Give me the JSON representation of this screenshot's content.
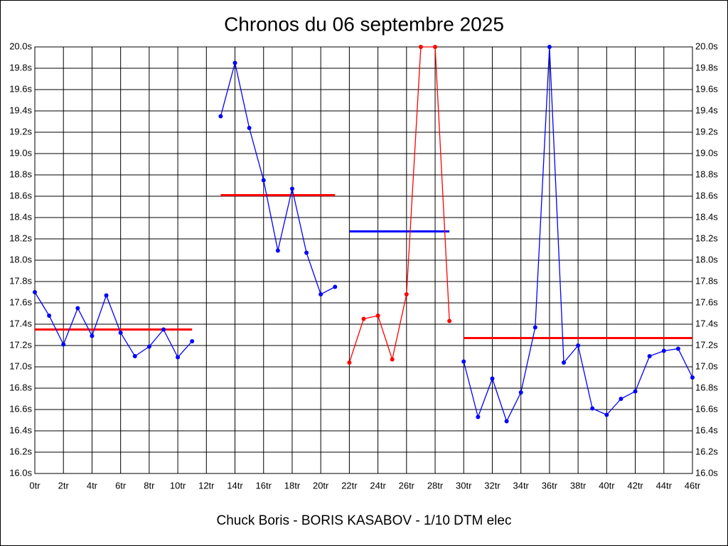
{
  "chart_data": {
    "type": "line",
    "title": "Chronos du 06 septembre 2025",
    "subtitle": "Chuck Boris - BORIS KASABOV - 1/10 DTM elec",
    "x": [
      0,
      1,
      2,
      3,
      4,
      5,
      6,
      7,
      8,
      9,
      10,
      11,
      12,
      13,
      14,
      15,
      16,
      17,
      18,
      19,
      20,
      21,
      22,
      23,
      24,
      25,
      26,
      27,
      28,
      29,
      30,
      31,
      32,
      33,
      34,
      35,
      36,
      37,
      38,
      39,
      40,
      41,
      42,
      43,
      44,
      45,
      46
    ],
    "series": [
      {
        "color": "#0000ff",
        "values": [
          17.7,
          17.48,
          17.21,
          17.55,
          17.29,
          17.67,
          17.32,
          17.1,
          17.19,
          17.35,
          17.09,
          17.24,
          null,
          19.35,
          19.85,
          19.24,
          18.75,
          18.09,
          18.67,
          18.07,
          17.68,
          17.75,
          null,
          null,
          null,
          null,
          null,
          null,
          null,
          null,
          17.05,
          16.53,
          16.89,
          16.49,
          16.76,
          17.37,
          20.0,
          17.04,
          17.2,
          16.61,
          16.55,
          16.7,
          16.77,
          17.1,
          17.15,
          17.17,
          16.9
        ]
      },
      {
        "color": "#ff0000",
        "values": [
          null,
          null,
          null,
          null,
          null,
          null,
          null,
          null,
          null,
          null,
          null,
          null,
          null,
          null,
          null,
          null,
          null,
          null,
          null,
          null,
          null,
          null,
          17.04,
          17.45,
          17.48,
          17.07,
          17.68,
          20.0,
          20.0,
          17.43,
          null,
          null,
          null,
          null,
          null,
          null,
          null,
          null,
          null,
          null,
          null,
          null,
          null,
          null,
          null,
          null,
          null
        ]
      }
    ],
    "mean_lines": [
      {
        "value": 17.35,
        "x": [
          0,
          11
        ],
        "color": "#ff0000"
      },
      {
        "value": 18.61,
        "x": [
          13,
          21
        ],
        "color": "#ff0000"
      },
      {
        "value": 18.27,
        "x": [
          22,
          29
        ],
        "color": "#0000ff"
      },
      {
        "value": 17.27,
        "x": [
          30,
          46
        ],
        "color": "#ff0000"
      }
    ],
    "xlim": [
      0,
      46
    ],
    "ylim": [
      16.0,
      20.0
    ],
    "xticks": [
      {
        "value": 0,
        "label": "0tr"
      },
      {
        "value": 2,
        "label": "2tr"
      },
      {
        "value": 4,
        "label": "4tr"
      },
      {
        "value": 6,
        "label": "6tr"
      },
      {
        "value": 8,
        "label": "8tr"
      },
      {
        "value": 10,
        "label": "10tr"
      },
      {
        "value": 12,
        "label": "12tr"
      },
      {
        "value": 14,
        "label": "14tr"
      },
      {
        "value": 16,
        "label": "16tr"
      },
      {
        "value": 18,
        "label": "18tr"
      },
      {
        "value": 20,
        "label": "20tr"
      },
      {
        "value": 22,
        "label": "22tr"
      },
      {
        "value": 24,
        "label": "24tr"
      },
      {
        "value": 26,
        "label": "26tr"
      },
      {
        "value": 28,
        "label": "28tr"
      },
      {
        "value": 30,
        "label": "30tr"
      },
      {
        "value": 32,
        "label": "32tr"
      },
      {
        "value": 34,
        "label": "34tr"
      },
      {
        "value": 36,
        "label": "36tr"
      },
      {
        "value": 38,
        "label": "38tr"
      },
      {
        "value": 40,
        "label": "40tr"
      },
      {
        "value": 42,
        "label": "42tr"
      },
      {
        "value": 44,
        "label": "44tr"
      },
      {
        "value": 46,
        "label": "46tr"
      }
    ],
    "yticks": [
      {
        "value": 16.0,
        "label": "16.0s"
      },
      {
        "value": 16.2,
        "label": "16.2s"
      },
      {
        "value": 16.4,
        "label": "16.4s"
      },
      {
        "value": 16.6,
        "label": "16.6s"
      },
      {
        "value": 16.8,
        "label": "16.8s"
      },
      {
        "value": 17.0,
        "label": "17.0s"
      },
      {
        "value": 17.2,
        "label": "17.2s"
      },
      {
        "value": 17.4,
        "label": "17.4s"
      },
      {
        "value": 17.6,
        "label": "17.6s"
      },
      {
        "value": 17.8,
        "label": "17.8s"
      },
      {
        "value": 18.0,
        "label": "18.0s"
      },
      {
        "value": 18.2,
        "label": "18.2s"
      },
      {
        "value": 18.4,
        "label": "18.4s"
      },
      {
        "value": 18.6,
        "label": "18.6s"
      },
      {
        "value": 18.8,
        "label": "18.8s"
      },
      {
        "value": 19.0,
        "label": "19.0s"
      },
      {
        "value": 19.2,
        "label": "19.2s"
      },
      {
        "value": 19.4,
        "label": "19.4s"
      },
      {
        "value": 19.6,
        "label": "19.6s"
      },
      {
        "value": 19.8,
        "label": "19.8s"
      },
      {
        "value": 20.0,
        "label": "20.0s"
      }
    ],
    "grid": true
  }
}
